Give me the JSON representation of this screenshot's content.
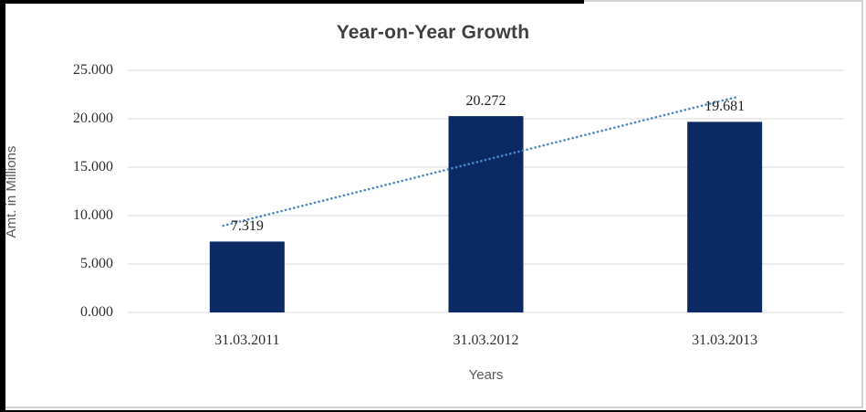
{
  "chart": {
    "title": "Year-on-Year Growth",
    "ylabel": "Amt. in Millions",
    "xlabel": "Years"
  },
  "chart_data": {
    "type": "bar",
    "title": "Year-on-Year Growth",
    "xlabel": "Years",
    "ylabel": "Amt. in Millions",
    "categories": [
      "31.03.2011",
      "31.03.2012",
      "31.03.2013"
    ],
    "values": [
      7.319,
      20.272,
      19.681
    ],
    "value_labels": [
      "7.319",
      "20.272",
      "19.681"
    ],
    "ytick_labels": [
      "0.000",
      "5.000",
      "10.000",
      "15.000",
      "20.000",
      "25.000"
    ],
    "ylim": [
      0,
      25
    ],
    "grid": true,
    "legend": false,
    "trendline": {
      "type": "linear",
      "style": "dotted",
      "color": "#4a86c8"
    },
    "bar_color": "#0b2a63",
    "gridline_color": "#d9d9d9"
  }
}
